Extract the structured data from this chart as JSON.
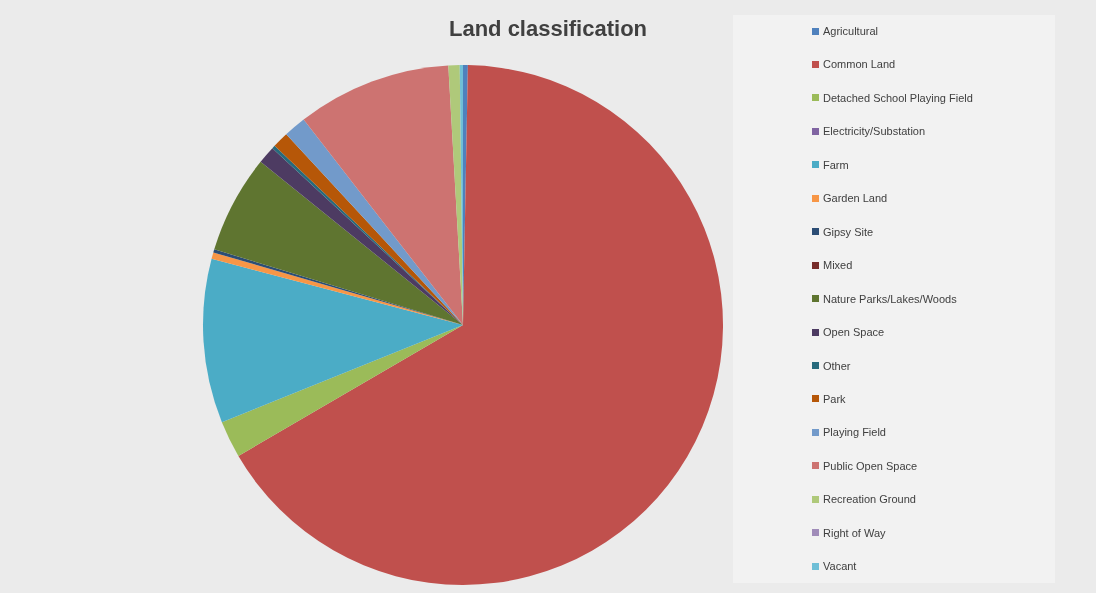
{
  "chart_data": {
    "type": "pie",
    "title": "Land classification",
    "categories": [
      "Agricultural",
      "Common Land",
      "Detached School Playing Field",
      "Electricity/Substation",
      "Farm",
      "Garden Land",
      "Gipsy Site",
      "Mixed",
      "Nature Parks/Lakes/Woods",
      "Open Space",
      "Other",
      "Park",
      "Playing Field",
      "Public Open Space",
      "Recreation Ground",
      "Right of Way",
      "Vacant"
    ],
    "values": [
      0.3,
      66.3,
      2.3,
      0,
      10.2,
      0.4,
      0.2,
      0,
      6.1,
      1.1,
      0.2,
      1.0,
      1.4,
      9.6,
      0.7,
      0,
      0.2
    ],
    "colors": [
      "#4f81bd",
      "#c0504d",
      "#9bbb59",
      "#8064a2",
      "#4bacc6",
      "#f79646",
      "#2c4d75",
      "#772c2a",
      "#5f7530",
      "#4d3b62",
      "#276a7c",
      "#b65708",
      "#729aca",
      "#cd7371",
      "#afc97a",
      "#a08cb9",
      "#6fbfd7"
    ],
    "legend": "right"
  }
}
